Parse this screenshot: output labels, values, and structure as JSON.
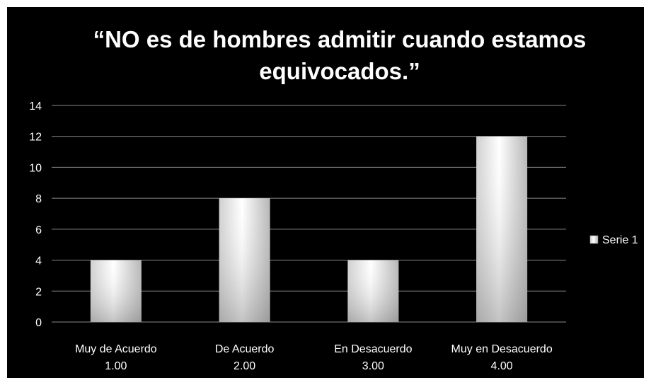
{
  "colors": {
    "background": "#000000",
    "gridline": "#8a8a8a",
    "axis_text": "#ffffff",
    "bar_highlight": "#ffffff",
    "bar_shade": "#bdbdbd"
  },
  "chart_data": {
    "type": "bar",
    "title_lines": [
      "“NO es de hombres admitir cuando estamos",
      "equivocados.”"
    ],
    "categories": [
      [
        "Muy de Acuerdo",
        "1.00"
      ],
      [
        "De Acuerdo",
        "2.00"
      ],
      [
        "En Desacuerdo",
        "3.00"
      ],
      [
        "Muy en Desacuerdo",
        "4.00"
      ]
    ],
    "series": [
      {
        "name": "Serie 1",
        "values": [
          4,
          8,
          4,
          12
        ]
      }
    ],
    "ylim": [
      0,
      14
    ],
    "yticks": [
      "0",
      "2",
      "4",
      "6",
      "8",
      "10",
      "12",
      "14"
    ],
    "grid": true,
    "legend": "right"
  }
}
